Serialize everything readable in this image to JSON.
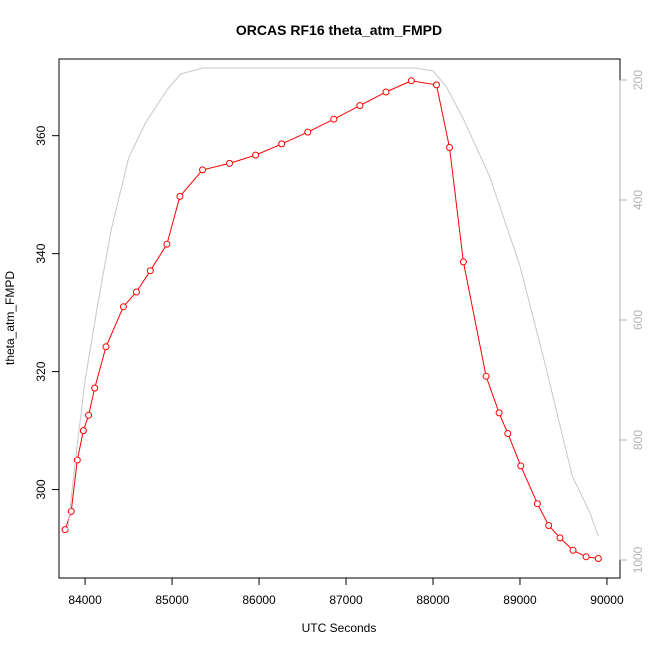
{
  "chart_data": {
    "type": "line",
    "title": "ORCAS RF16 theta_atm_FMPD",
    "xlabel": "UTC Seconds",
    "ylabel": "theta_atm_FMPD",
    "xlim": [
      83700,
      90150
    ],
    "ylim": [
      285,
      373
    ],
    "y2lim": [
      1030,
      165
    ],
    "x_ticks": [
      84000,
      85000,
      86000,
      87000,
      88000,
      89000,
      90000
    ],
    "y_ticks": [
      300,
      320,
      340,
      360
    ],
    "y2_ticks": [
      200,
      400,
      600,
      800,
      1000
    ],
    "grid": false,
    "series": [
      {
        "axis": "left",
        "color": "#ff0000",
        "marker": "open-circle",
        "x": [
          83770,
          83840,
          83910,
          83980,
          84040,
          84110,
          84240,
          84440,
          84590,
          84750,
          84940,
          85090,
          85350,
          85660,
          85960,
          86260,
          86560,
          86860,
          87160,
          87460,
          87750,
          88040,
          88190,
          88350,
          88610,
          88760,
          88860,
          89010,
          89200,
          89330,
          89460,
          89610,
          89760,
          89900
        ],
        "y": [
          293.2,
          296.3,
          305.0,
          310.0,
          312.6,
          317.2,
          324.2,
          331.0,
          333.5,
          337.1,
          341.6,
          349.7,
          354.2,
          355.3,
          356.7,
          358.6,
          360.6,
          362.8,
          365.1,
          367.4,
          369.3,
          368.6,
          358.0,
          338.6,
          319.2,
          313.0,
          309.5,
          304.0,
          297.6,
          293.9,
          291.8,
          289.7,
          288.6,
          288.3
        ]
      },
      {
        "axis": "right",
        "color": "#c8c8c8",
        "marker": "none",
        "x": [
          83800,
          83900,
          84000,
          84150,
          84300,
          84500,
          84700,
          84950,
          85100,
          85350,
          85800,
          86500,
          87200,
          87800,
          88000,
          88150,
          88350,
          88650,
          89000,
          89300,
          89600,
          89800,
          89900
        ],
        "y": [
          950,
          820,
          700,
          570,
          450,
          330,
          270,
          215,
          190,
          180,
          180,
          180,
          180,
          180,
          185,
          210,
          265,
          360,
          510,
          680,
          860,
          920,
          960
        ]
      }
    ]
  }
}
